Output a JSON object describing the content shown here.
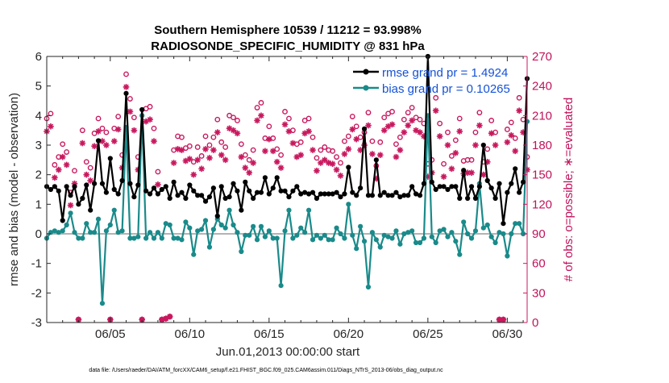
{
  "colors": {
    "rmse": "#000000",
    "bias": "#1a8a8a",
    "obs": "#c8185e",
    "zero_line": "#b3b3b3",
    "axis": "#262626",
    "legend_text": "#1452d9"
  },
  "chart_data": {
    "type": "line",
    "title": "Southern Hemisphere 10539 / 11212 = 93.998%",
    "subtitle": "RADIOSONDE_SPECIFIC_HUMIDITY @ 831 hPa",
    "xlabel": "Jun.01,2013 00:00:00 start",
    "ylabel": "rmse and bias (model - observation)",
    "ylabel_right": "# of obs: o=possible; ∗=evaluated",
    "footnote": "data file: /Users/raeder/DAI/ATM_forcXX/CAM6_setup/f.e21.FHIST_BGC.f09_025.CAM6assim.011/Diags_NTrS_2013-06/obs_diag_output.nc",
    "x_range": [
      1,
      31.25
    ],
    "ylim": [
      -3,
      6
    ],
    "ylim_right": [
      0,
      270
    ],
    "yticks": [
      "-3",
      "-2",
      "-1",
      "0",
      "1",
      "2",
      "3",
      "4",
      "5",
      "6"
    ],
    "yticks_right": [
      "0",
      "30",
      "60",
      "90",
      "120",
      "150",
      "180",
      "210",
      "240",
      "270"
    ],
    "xtick_values": [
      5,
      10,
      15,
      20,
      25,
      30
    ],
    "xticks": [
      "06/05",
      "06/10",
      "06/15",
      "06/20",
      "06/25",
      "06/30"
    ],
    "grid": false,
    "legend_position": "top-right",
    "x": [
      1.0,
      1.25,
      1.5,
      1.75,
      2.0,
      2.25,
      2.5,
      2.75,
      3.0,
      3.25,
      3.5,
      3.75,
      4.0,
      4.25,
      4.5,
      4.75,
      5.0,
      5.25,
      5.5,
      5.75,
      6.0,
      6.25,
      6.5,
      6.75,
      7.0,
      7.25,
      7.5,
      7.75,
      8.0,
      8.25,
      8.5,
      8.75,
      9.0,
      9.25,
      9.5,
      9.75,
      10.0,
      10.25,
      10.5,
      10.75,
      11.0,
      11.25,
      11.5,
      11.75,
      12.0,
      12.25,
      12.5,
      12.75,
      13.0,
      13.25,
      13.5,
      13.75,
      14.0,
      14.25,
      14.5,
      14.75,
      15.0,
      15.25,
      15.5,
      15.75,
      16.0,
      16.25,
      16.5,
      16.75,
      17.0,
      17.25,
      17.5,
      17.75,
      18.0,
      18.25,
      18.5,
      18.75,
      19.0,
      19.25,
      19.5,
      19.75,
      20.0,
      20.25,
      20.5,
      20.75,
      21.0,
      21.25,
      21.5,
      21.75,
      22.0,
      22.25,
      22.5,
      22.75,
      23.0,
      23.25,
      23.5,
      23.75,
      24.0,
      24.25,
      24.5,
      24.75,
      25.0,
      25.25,
      25.5,
      25.75,
      26.0,
      26.25,
      26.5,
      26.75,
      27.0,
      27.25,
      27.5,
      27.75,
      28.0,
      28.25,
      28.5,
      28.75,
      29.0,
      29.25,
      29.5,
      29.75,
      30.0,
      30.25,
      30.5,
      30.75,
      31.0,
      31.25
    ],
    "series": [
      {
        "name": "rmse grand pr = 1.4924",
        "values": [
          1.6,
          1.5,
          1.6,
          1.45,
          0.45,
          1.6,
          1.3,
          1.6,
          1.0,
          1.2,
          1.65,
          0.8,
          1.7,
          3.15,
          1.7,
          1.4,
          2.55,
          1.5,
          1.35,
          1.8,
          4.75,
          1.7,
          1.25,
          1.65,
          4.2,
          1.45,
          1.35,
          1.55,
          1.35,
          1.5,
          1.6,
          1.2,
          1.75,
          1.3,
          1.4,
          1.2,
          1.65,
          1.45,
          1.3,
          1.3,
          1.1,
          1.25,
          1.55,
          0.6,
          1.6,
          1.2,
          1.25,
          1.7,
          1.45,
          0.8,
          1.75,
          1.45,
          1.2,
          1.4,
          1.4,
          1.9,
          1.35,
          1.55,
          1.9,
          1.45,
          1.45,
          1.25,
          1.45,
          1.6,
          1.35,
          1.4,
          1.35,
          1.4,
          1.2,
          1.35,
          1.35,
          1.35,
          1.35,
          1.4,
          1.25,
          1.35,
          2.25,
          1.4,
          1.3,
          1.55,
          3.55,
          1.3,
          1.3,
          2.5,
          1.3,
          1.4,
          1.3,
          1.3,
          1.4,
          1.25,
          1.3,
          1.3,
          1.6,
          1.35,
          1.3,
          1.7,
          6.0,
          1.75,
          1.5,
          1.6,
          1.6,
          1.5,
          1.6,
          1.6,
          1.2,
          2.15,
          1.2,
          1.6,
          1.2,
          1.6,
          3.0,
          1.8,
          1.55,
          1.2,
          1.7,
          0.35,
          1.4,
          1.7,
          2.2,
          1.4,
          1.75,
          5.25
        ]
      },
      {
        "name": "bias grand pr = 0.10265",
        "values": [
          -0.15,
          0.05,
          0.1,
          0.05,
          0.1,
          0.3,
          0.7,
          0.05,
          -0.15,
          -0.15,
          0.35,
          0.05,
          0.05,
          0.5,
          -2.35,
          0.1,
          0.3,
          0.8,
          0.05,
          0.1,
          3.6,
          -0.15,
          -0.15,
          -0.1,
          4.0,
          -0.15,
          0.05,
          -0.15,
          0.05,
          -0.15,
          0.35,
          0.3,
          -0.15,
          -0.15,
          -0.2,
          0.4,
          0.2,
          -0.7,
          0.1,
          0.15,
          0.45,
          -0.45,
          0.15,
          0.5,
          0.3,
          0.2,
          0.8,
          0.3,
          0.05,
          -0.6,
          -0.05,
          -0.05,
          0.25,
          -0.2,
          0.25,
          -0.1,
          0.1,
          -0.15,
          -0.15,
          -1.75,
          0.1,
          0.8,
          -0.15,
          -0.05,
          0.2,
          0.05,
          0.8,
          -0.2,
          -0.05,
          -0.15,
          -0.05,
          -0.2,
          -0.2,
          0.2,
          0.0,
          -0.15,
          1.0,
          -0.05,
          -0.5,
          0.25,
          -0.25,
          -1.8,
          0.05,
          -0.2,
          -0.45,
          -0.05,
          -0.1,
          -0.15,
          0.1,
          -0.35,
          0.0,
          0.05,
          0.1,
          -0.3,
          -0.3,
          -0.15,
          4.0,
          -0.1,
          -0.3,
          0.1,
          0.15,
          -0.1,
          0.05,
          -0.25,
          -0.7,
          0.4,
          0.0,
          -0.15,
          0.1,
          1.7,
          0.2,
          0.3,
          -0.1,
          -0.3,
          0.05,
          0.0,
          -0.75,
          0.0,
          0.35,
          0.35,
          0.0,
          3.8
        ]
      }
    ],
    "obs_possible": [
      207,
      212,
      160,
      168,
      181,
      173,
      132,
      154,
      3,
      195,
      163,
      157,
      192,
      207,
      197,
      193,
      3,
      197,
      209,
      170,
      252,
      227,
      208,
      168,
      3,
      217,
      219,
      197,
      153,
      3,
      4,
      6,
      175,
      189,
      188,
      177,
      179,
      163,
      178,
      169,
      189,
      180,
      188,
      206,
      183,
      178,
      210,
      208,
      205,
      181,
      170,
      165,
      175,
      218,
      223,
      187,
      199,
      187,
      176,
      170,
      214,
      207,
      195,
      181,
      183,
      205,
      207,
      188,
      167,
      175,
      178,
      175,
      174,
      168,
      162,
      184,
      189,
      209,
      199,
      188,
      193,
      213,
      184,
      159,
      183,
      208,
      212,
      214,
      181,
      188,
      206,
      213,
      218,
      208,
      206,
      202,
      161,
      165,
      228,
      202,
      161,
      193,
      169,
      185,
      207,
      164,
      165,
      165,
      193,
      213,
      163,
      176,
      205,
      193,
      3,
      3,
      196,
      203,
      187,
      228,
      206,
      168
    ]
  }
}
